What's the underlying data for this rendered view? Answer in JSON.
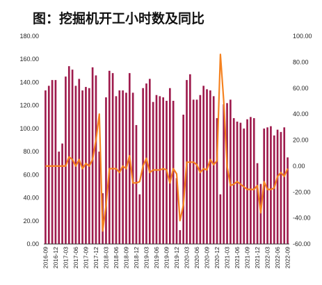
{
  "title": "图：挖掘机开工小时数及同比",
  "chart_data": {
    "type": "bar",
    "colors": {
      "bar": "#9e1b4d",
      "line": "#f58220",
      "axis": "#333333"
    },
    "left_axis": {
      "ylim": [
        0,
        180
      ],
      "ticks": [
        "0.00",
        "20.00",
        "40.00",
        "60.00",
        "80.00",
        "100.00",
        "120.00",
        "140.00",
        "160.00",
        "180.00"
      ]
    },
    "right_axis": {
      "ylim": [
        -60,
        100
      ],
      "ticks": [
        "-60.00",
        "-40.00",
        "-20.00",
        "0.00",
        "20.00",
        "40.00",
        "60.00",
        "80.00",
        "100.00"
      ]
    },
    "x_tick_labels": [
      "2016-09",
      "2016-12",
      "2017-03",
      "2017-06",
      "2017-09",
      "2017-12",
      "2018-03",
      "2018-06",
      "2018-09",
      "2018-12",
      "2019-03",
      "2019-06",
      "2019-09",
      "2019-12",
      "2020-03",
      "2020-06",
      "2020-09",
      "2020-12",
      "2021-03",
      "2021-06",
      "2021-09",
      "2021-12",
      "2022-03",
      "2022-06",
      "2022-09"
    ],
    "categories": [
      "2016-09",
      "2016-10",
      "2016-11",
      "2016-12",
      "2017-01",
      "2017-02",
      "2017-03",
      "2017-04",
      "2017-05",
      "2017-06",
      "2017-07",
      "2017-08",
      "2017-09",
      "2017-10",
      "2017-11",
      "2017-12",
      "2018-01",
      "2018-02",
      "2018-03",
      "2018-04",
      "2018-05",
      "2018-06",
      "2018-07",
      "2018-08",
      "2018-09",
      "2018-10",
      "2018-11",
      "2018-12",
      "2019-01",
      "2019-02",
      "2019-03",
      "2019-04",
      "2019-05",
      "2019-06",
      "2019-07",
      "2019-08",
      "2019-09",
      "2019-10",
      "2019-11",
      "2019-12",
      "2020-01",
      "2020-02",
      "2020-03",
      "2020-04",
      "2020-05",
      "2020-06",
      "2020-07",
      "2020-08",
      "2020-09",
      "2020-10",
      "2020-11",
      "2020-12",
      "2021-01",
      "2021-02",
      "2021-03",
      "2021-04",
      "2021-05",
      "2021-06",
      "2021-07",
      "2021-08",
      "2021-09",
      "2021-10",
      "2021-11",
      "2021-12",
      "2022-01",
      "2022-02",
      "2022-03",
      "2022-04",
      "2022-05",
      "2022-06",
      "2022-07",
      "2022-08",
      "2022-09"
    ],
    "series": [
      {
        "axis": "left",
        "kind": "bar",
        "values": [
          133,
          137,
          142,
          142,
          80,
          87,
          145,
          154,
          151,
          137,
          143,
          133,
          136,
          135,
          153,
          146,
          80,
          44,
          127,
          150,
          148,
          128,
          133,
          133,
          131,
          148,
          131,
          103,
          43,
          135,
          139,
          143,
          123,
          129,
          128,
          127,
          124,
          135,
          124,
          57,
          12,
          112,
          142,
          147,
          125,
          125,
          129,
          137,
          134,
          133,
          128,
          109,
          43,
          121,
          122,
          125,
          109,
          106,
          105,
          100,
          108,
          110,
          109,
          70,
          52,
          100,
          101,
          102,
          94,
          99,
          97,
          101,
          75
        ]
      },
      {
        "axis": "right",
        "kind": "line",
        "values": [
          0,
          0,
          0,
          0,
          0,
          0,
          0,
          7,
          5,
          0,
          5,
          -2,
          2,
          0,
          5,
          20,
          40,
          -50,
          -30,
          -2,
          -2,
          -2,
          -5,
          0,
          -2,
          8,
          -13,
          -13,
          -12,
          0,
          6,
          -5,
          -3,
          -3,
          -3,
          -2,
          -3,
          -13,
          -2,
          -6,
          -42,
          -30,
          3,
          3,
          3,
          1,
          -5,
          -2,
          -3,
          5,
          1,
          4,
          86,
          50,
          0,
          -15,
          -14,
          -12,
          -14,
          -16,
          -18,
          -18,
          -18,
          -15,
          -36,
          -12,
          -18,
          -18,
          -17,
          -8,
          -5,
          -8,
          -2
        ]
      }
    ]
  }
}
